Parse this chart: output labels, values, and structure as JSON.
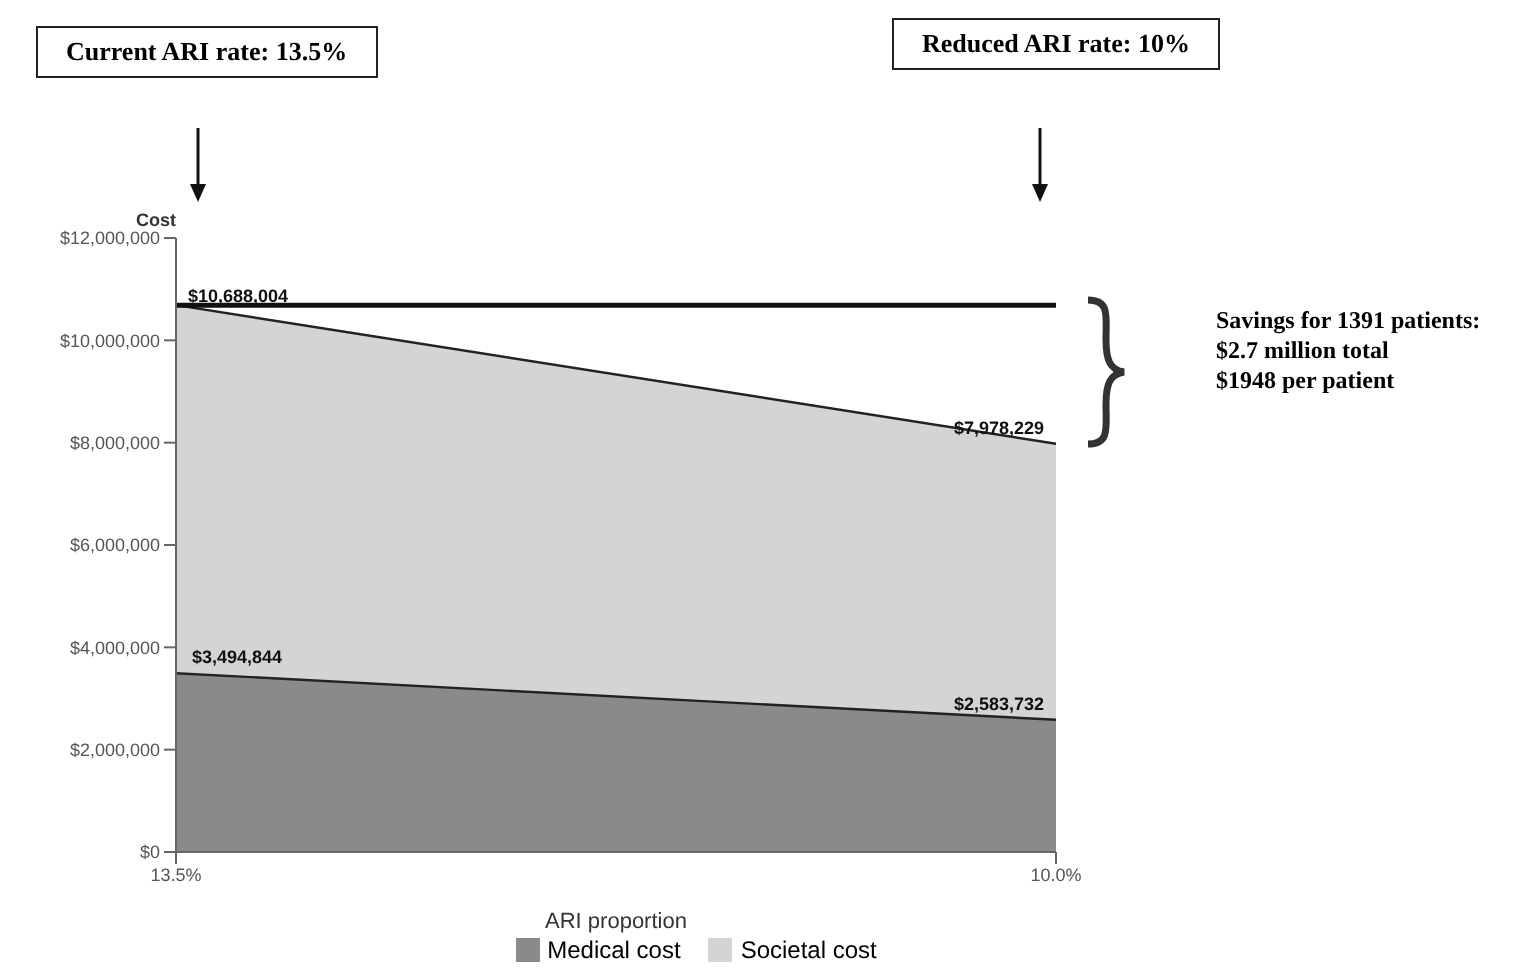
{
  "chart_data": {
    "type": "area",
    "ylabel": "Cost",
    "xlabel": "ARI proportion",
    "x": [
      13.5,
      10.0
    ],
    "xlim": [
      13.5,
      10.0
    ],
    "xticks": [
      {
        "value": 13.5,
        "label": "13.5%"
      },
      {
        "value": 10.0,
        "label": "10.0%"
      }
    ],
    "ylim": [
      0,
      12000000
    ],
    "yticks": [
      {
        "value": 0,
        "label": "$0"
      },
      {
        "value": 2000000,
        "label": "$2,000,000"
      },
      {
        "value": 4000000,
        "label": "$4,000,000"
      },
      {
        "value": 6000000,
        "label": "$6,000,000"
      },
      {
        "value": 8000000,
        "label": "$8,000,000"
      },
      {
        "value": 10000000,
        "label": "$10,000,000"
      },
      {
        "value": 12000000,
        "label": "$12,000,000"
      }
    ],
    "series": [
      {
        "name": "Societal cost",
        "color": "#d4d4d4",
        "values": [
          10688004,
          7978229
        ],
        "value_labels": [
          null,
          "$7,978,229"
        ]
      },
      {
        "name": "Medical cost",
        "color": "#8a8a8a",
        "values": [
          3494844,
          2583732
        ],
        "value_labels": [
          "$3,494,844",
          "$2,583,732"
        ]
      }
    ],
    "ref_lines": [
      {
        "axis": "y",
        "value": 10688004,
        "label": "$10,688,004",
        "color": "#111111",
        "line_style": "solid"
      }
    ],
    "legend": "bottom",
    "grid": false,
    "annotations": [
      "Current ARI rate: 13.5%",
      "Reduced ARI rate: 10%",
      "Savings for 1391 patients:\n$2.7 million total\n$1948 per patient"
    ]
  }
}
